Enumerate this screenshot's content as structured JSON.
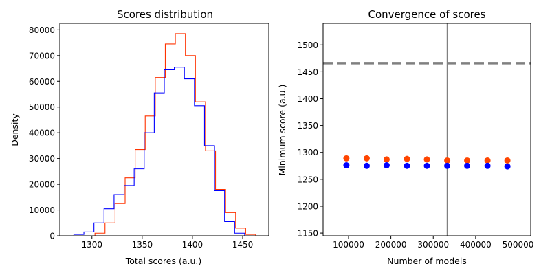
{
  "chart_data": [
    {
      "type": "histogram",
      "title": "Scores distribution",
      "xlabel": "Total scores (a.u.)",
      "ylabel": "Density",
      "xlim": [
        1268,
        1476
      ],
      "ylim": [
        0,
        82500
      ],
      "xticks": [
        1300,
        1350,
        1400,
        1450
      ],
      "yticks": [
        0,
        10000,
        20000,
        30000,
        40000,
        50000,
        60000,
        70000,
        80000
      ],
      "grid": false,
      "series": [
        {
          "color": "#ff3300",
          "bin_edges": [
            1281,
            1293,
            1303,
            1313,
            1323,
            1333,
            1343,
            1353,
            1363,
            1373,
            1383,
            1393,
            1403,
            1413,
            1423,
            1433,
            1443,
            1453,
            1463
          ],
          "values": [
            0,
            0,
            1000,
            5000,
            12500,
            22500,
            33500,
            46500,
            61500,
            74500,
            78500,
            70000,
            52000,
            33000,
            18000,
            9000,
            3000,
            500
          ]
        },
        {
          "color": "#0000ff",
          "bin_edges": [
            1282,
            1292,
            1302,
            1312,
            1322,
            1332,
            1342,
            1352,
            1362,
            1372,
            1382,
            1392,
            1402,
            1412,
            1422,
            1432,
            1442,
            1452
          ],
          "values": [
            500,
            1500,
            5000,
            10500,
            16000,
            19500,
            26000,
            40000,
            55500,
            64500,
            65500,
            61000,
            50500,
            35000,
            17500,
            5500,
            1000
          ]
        }
      ]
    },
    {
      "type": "scatter",
      "title": "Convergence of scores",
      "xlabel": "Number of models",
      "ylabel": "Minimum score (a.u.)",
      "xlim": [
        40000,
        530000
      ],
      "ylim": [
        1145,
        1540
      ],
      "xticks": [
        100000,
        200000,
        300000,
        400000,
        500000
      ],
      "xtick_labels": [
        "100000",
        "200000",
        "300000",
        "400000",
        "500000"
      ],
      "yticks": [
        1150,
        1200,
        1250,
        1300,
        1350,
        1400,
        1450,
        1500
      ],
      "grid": false,
      "hline": {
        "y": 1466,
        "color": "#808080",
        "style": "dashed"
      },
      "vline": {
        "x": 333000,
        "color": "#808080",
        "style": "solid"
      },
      "series": [
        {
          "color": "#ff4500",
          "x": [
            95000,
            143000,
            190000,
            238000,
            285000,
            333000,
            380000,
            428000,
            475000
          ],
          "y": [
            1289,
            1289,
            1287,
            1288,
            1287,
            1285,
            1285,
            1285,
            1285
          ]
        },
        {
          "color": "#0000ff",
          "x": [
            95000,
            143000,
            190000,
            238000,
            285000,
            333000,
            380000,
            428000,
            475000
          ],
          "y": [
            1276,
            1275,
            1276,
            1275,
            1275,
            1275,
            1275,
            1275,
            1274
          ]
        }
      ]
    }
  ]
}
